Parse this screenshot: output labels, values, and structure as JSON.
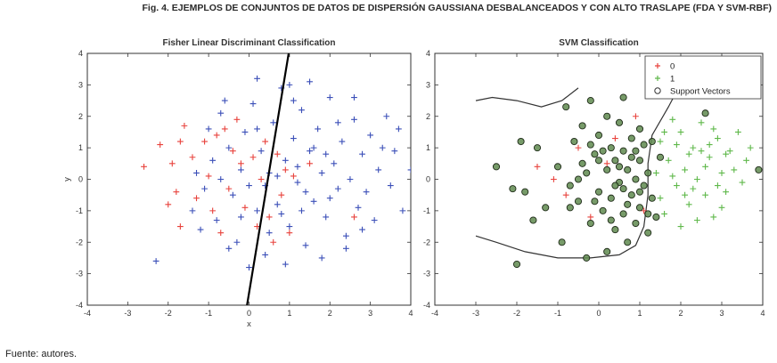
{
  "figure": {
    "caption": "Fig. 4. EJEMPLOS DE CONJUNTOS DE DATOS DE DISPERSIÓN GAUSSIANA DESBALANCEADOS Y CON ALTO TRASLAPE (FDA Y SVM-RBF)",
    "source": "Fuente: autores."
  },
  "colors": {
    "class0": "#e8423c",
    "class1_fda": "#3b4fb8",
    "class1_svm": "#5fb84a",
    "sv_fill": "#5f8a4f",
    "sv_stroke": "#1e2a18",
    "line": "#000000",
    "boundary": "#333333"
  },
  "chart_data": [
    {
      "type": "scatter",
      "title": "Fisher Linear Discriminant Classification",
      "xlabel": "x",
      "ylabel": "y",
      "xlim": [
        -4,
        4
      ],
      "ylim": [
        -4,
        4
      ],
      "xticks": [
        "-4",
        "-3",
        "-2",
        "-1",
        "0",
        "1",
        "2",
        "3",
        "4"
      ],
      "yticks": [
        "-4",
        "-3",
        "-2",
        "-1",
        "0",
        "1",
        "2",
        "3",
        "4"
      ],
      "grid": false,
      "series": [
        {
          "class": "0",
          "marker": "+",
          "color": "#e8423c",
          "points": [
            [
              -1.6,
              1.7
            ],
            [
              -2.6,
              0.4
            ],
            [
              -2.2,
              1.1
            ],
            [
              -1.9,
              0.5
            ],
            [
              -1.8,
              -0.4
            ],
            [
              -2.0,
              -0.8
            ],
            [
              -1.7,
              -1.5
            ],
            [
              -1.4,
              0.7
            ],
            [
              -1.1,
              1.2
            ],
            [
              -0.8,
              1.4
            ],
            [
              -0.6,
              1.6
            ],
            [
              -1.3,
              -0.6
            ],
            [
              -0.9,
              -1.0
            ],
            [
              -0.4,
              0.9
            ],
            [
              -0.2,
              0.5
            ],
            [
              0.1,
              0.7
            ],
            [
              0.4,
              1.2
            ],
            [
              0.7,
              0.8
            ],
            [
              0.9,
              0.3
            ],
            [
              -0.5,
              -0.3
            ],
            [
              -0.1,
              -0.9
            ],
            [
              0.2,
              -1.5
            ],
            [
              0.5,
              -1.2
            ],
            [
              0.8,
              -0.5
            ],
            [
              1.1,
              0.1
            ],
            [
              1.5,
              0.5
            ],
            [
              -1.0,
              0.1
            ],
            [
              -0.3,
              1.9
            ],
            [
              0.3,
              0.0
            ],
            [
              0.6,
              -2.0
            ],
            [
              1.0,
              -1.7
            ],
            [
              2.6,
              -1.2
            ],
            [
              -1.7,
              1.2
            ],
            [
              -0.7,
              -1.7
            ]
          ]
        },
        {
          "class": "1",
          "marker": "+",
          "color": "#3b4fb8",
          "points": [
            [
              -2.3,
              -2.6
            ],
            [
              -1.3,
              0.2
            ],
            [
              -1.1,
              -0.3
            ],
            [
              -0.9,
              0.6
            ],
            [
              -0.8,
              -1.3
            ],
            [
              -0.7,
              2.1
            ],
            [
              -0.5,
              1.0
            ],
            [
              -0.4,
              -0.5
            ],
            [
              -0.3,
              -2.0
            ],
            [
              -0.2,
              0.3
            ],
            [
              -0.1,
              1.5
            ],
            [
              0.0,
              -0.2
            ],
            [
              0.1,
              2.4
            ],
            [
              0.2,
              -1.0
            ],
            [
              0.3,
              0.9
            ],
            [
              0.4,
              -2.4
            ],
            [
              0.5,
              0.2
            ],
            [
              0.6,
              1.8
            ],
            [
              0.7,
              -0.8
            ],
            [
              0.8,
              2.9
            ],
            [
              0.9,
              0.6
            ],
            [
              1.0,
              -1.5
            ],
            [
              1.1,
              1.3
            ],
            [
              1.2,
              -0.1
            ],
            [
              1.3,
              2.2
            ],
            [
              1.4,
              -2.1
            ],
            [
              1.5,
              0.9
            ],
            [
              1.6,
              -0.7
            ],
            [
              1.7,
              1.6
            ],
            [
              1.8,
              0.2
            ],
            [
              1.9,
              -1.2
            ],
            [
              2.0,
              2.6
            ],
            [
              2.1,
              0.5
            ],
            [
              2.2,
              -0.3
            ],
            [
              2.3,
              1.2
            ],
            [
              2.4,
              -1.8
            ],
            [
              2.5,
              0.0
            ],
            [
              2.6,
              1.9
            ],
            [
              2.7,
              -0.9
            ],
            [
              2.8,
              0.8
            ],
            [
              2.9,
              -0.4
            ],
            [
              3.0,
              1.4
            ],
            [
              3.1,
              -1.3
            ],
            [
              3.2,
              0.3
            ],
            [
              3.4,
              2.0
            ],
            [
              3.5,
              -0.2
            ],
            [
              3.6,
              0.9
            ],
            [
              3.8,
              -1.0
            ],
            [
              4.0,
              0.3
            ],
            [
              1.0,
              3.0
            ],
            [
              1.5,
              3.1
            ],
            [
              0.2,
              3.2
            ],
            [
              -0.6,
              2.5
            ],
            [
              1.8,
              -2.5
            ],
            [
              2.4,
              -2.2
            ],
            [
              0.9,
              -2.7
            ],
            [
              0.0,
              -2.8
            ],
            [
              -0.5,
              -2.2
            ],
            [
              1.2,
              0.4
            ],
            [
              0.4,
              -0.2
            ],
            [
              1.6,
              1.0
            ],
            [
              2.0,
              -0.6
            ],
            [
              0.7,
              0.1
            ],
            [
              -0.2,
              -1.2
            ],
            [
              0.2,
              1.6
            ],
            [
              1.3,
              -1.0
            ],
            [
              1.9,
              0.8
            ],
            [
              2.2,
              1.8
            ],
            [
              0.5,
              -1.7
            ],
            [
              1.1,
              2.5
            ],
            [
              2.8,
              -1.6
            ],
            [
              3.3,
              1.0
            ],
            [
              -1.4,
              -1.0
            ],
            [
              -1.0,
              1.6
            ],
            [
              -1.2,
              -1.6
            ],
            [
              -0.7,
              0.0
            ],
            [
              3.7,
              1.6
            ],
            [
              2.6,
              2.6
            ],
            [
              1.4,
              -0.4
            ],
            [
              0.8,
              -1.1
            ]
          ]
        }
      ],
      "line": {
        "from": [
          -0.05,
          -4.0
        ],
        "to": [
          0.98,
          4.0
        ]
      }
    },
    {
      "type": "scatter",
      "title": "SVM Classification",
      "xlabel": "",
      "ylabel": "",
      "xlim": [
        -4,
        4
      ],
      "ylim": [
        -4,
        4
      ],
      "xticks": [
        "-4",
        "-3",
        "-2",
        "-1",
        "0",
        "1",
        "2",
        "3",
        "4"
      ],
      "yticks": [
        "-4",
        "-3",
        "-2",
        "-1",
        "0",
        "1",
        "2",
        "3",
        "4"
      ],
      "grid": false,
      "legend": {
        "position": "top-right",
        "entries": [
          "0",
          "1",
          "Support Vectors"
        ]
      },
      "series": [
        {
          "class": "0",
          "marker": "+",
          "color": "#e8423c",
          "points": [
            [
              -1.1,
              0.0
            ],
            [
              -0.8,
              -0.5
            ],
            [
              -1.5,
              0.4
            ],
            [
              -0.5,
              1.0
            ],
            [
              -0.2,
              -1.2
            ],
            [
              0.4,
              1.3
            ],
            [
              0.9,
              2.0
            ],
            [
              1.1,
              -1.0
            ],
            [
              0.2,
              0.5
            ]
          ]
        },
        {
          "class": "1",
          "marker": "+",
          "color": "#5fb84a",
          "points": [
            [
              1.5,
              1.2
            ],
            [
              1.7,
              0.6
            ],
            [
              1.9,
              -0.2
            ],
            [
              2.0,
              1.5
            ],
            [
              2.1,
              0.3
            ],
            [
              2.2,
              -0.8
            ],
            [
              2.3,
              1.0
            ],
            [
              2.4,
              0.0
            ],
            [
              2.5,
              1.8
            ],
            [
              2.6,
              -0.5
            ],
            [
              2.7,
              0.7
            ],
            [
              2.8,
              -1.2
            ],
            [
              2.9,
              1.3
            ],
            [
              3.0,
              0.2
            ],
            [
              3.1,
              -0.4
            ],
            [
              3.2,
              0.9
            ],
            [
              3.4,
              1.5
            ],
            [
              3.5,
              -0.1
            ],
            [
              3.6,
              0.6
            ],
            [
              1.6,
              -1.1
            ],
            [
              1.8,
              1.9
            ],
            [
              2.0,
              -1.5
            ],
            [
              2.2,
              0.8
            ],
            [
              2.4,
              -1.3
            ],
            [
              2.6,
              0.4
            ],
            [
              2.8,
              1.6
            ],
            [
              3.0,
              -0.9
            ],
            [
              1.4,
              0.2
            ],
            [
              1.6,
              1.5
            ],
            [
              2.3,
              -0.3
            ],
            [
              2.7,
              1.1
            ],
            [
              1.8,
              0.1
            ],
            [
              2.1,
              -0.5
            ],
            [
              3.3,
              0.3
            ],
            [
              2.5,
              0.9
            ],
            [
              3.7,
              1.0
            ],
            [
              1.5,
              -0.6
            ],
            [
              1.9,
              1.1
            ],
            [
              2.9,
              -0.2
            ],
            [
              3.1,
              0.8
            ]
          ]
        },
        {
          "class": "support_vectors",
          "marker": "o",
          "color": "#5f8a4f",
          "points": [
            [
              -2.5,
              0.4
            ],
            [
              -2.1,
              -0.3
            ],
            [
              -1.9,
              1.2
            ],
            [
              -1.8,
              -0.4
            ],
            [
              -1.6,
              -1.3
            ],
            [
              -2.0,
              -2.7
            ],
            [
              -1.3,
              -0.9
            ],
            [
              -1.0,
              0.4
            ],
            [
              -0.7,
              -0.2
            ],
            [
              -0.6,
              1.2
            ],
            [
              -0.5,
              -0.7
            ],
            [
              -0.4,
              1.7
            ],
            [
              -0.3,
              0.2
            ],
            [
              -0.2,
              -1.4
            ],
            [
              -0.1,
              0.8
            ],
            [
              0.0,
              -0.4
            ],
            [
              0.0,
              1.4
            ],
            [
              0.1,
              -1.0
            ],
            [
              0.2,
              0.3
            ],
            [
              0.2,
              -2.3
            ],
            [
              0.3,
              1.0
            ],
            [
              0.3,
              -0.6
            ],
            [
              0.4,
              0.6
            ],
            [
              0.4,
              -1.6
            ],
            [
              0.5,
              1.8
            ],
            [
              0.5,
              -0.1
            ],
            [
              0.6,
              0.9
            ],
            [
              0.6,
              -1.1
            ],
            [
              0.7,
              0.3
            ],
            [
              0.7,
              -2.0
            ],
            [
              0.8,
              1.3
            ],
            [
              0.8,
              -0.5
            ],
            [
              0.9,
              0.0
            ],
            [
              0.9,
              -1.4
            ],
            [
              1.0,
              0.6
            ],
            [
              1.0,
              -0.9
            ],
            [
              1.1,
              1.1
            ],
            [
              1.1,
              -0.2
            ],
            [
              1.2,
              0.2
            ],
            [
              1.2,
              -1.7
            ],
            [
              1.3,
              -0.6
            ],
            [
              1.3,
              1.2
            ],
            [
              1.4,
              -1.2
            ],
            [
              1.5,
              0.7
            ],
            [
              -0.4,
              0.5
            ],
            [
              -0.1,
              -0.7
            ],
            [
              0.1,
              0.9
            ],
            [
              0.3,
              -1.3
            ],
            [
              0.5,
              0.4
            ],
            [
              0.6,
              -0.3
            ],
            [
              0.8,
              0.7
            ],
            [
              1.0,
              -0.4
            ],
            [
              -0.8,
              2.3
            ],
            [
              0.2,
              2.0
            ],
            [
              0.6,
              2.6
            ],
            [
              -0.3,
              -2.5
            ],
            [
              -0.7,
              -0.9
            ],
            [
              -1.5,
              1.0
            ],
            [
              -0.9,
              -2.0
            ],
            [
              2.6,
              2.1
            ],
            [
              3.9,
              0.3
            ],
            [
              -0.2,
              2.5
            ],
            [
              1.0,
              1.6
            ],
            [
              0.4,
              -0.2
            ],
            [
              -0.5,
              0.0
            ],
            [
              0.7,
              -0.8
            ],
            [
              -0.2,
              1.1
            ],
            [
              1.2,
              -1.1
            ],
            [
              0.0,
              0.6
            ],
            [
              0.9,
              0.9
            ]
          ]
        }
      ],
      "boundaries": [
        [
          [
            -3.0,
            2.5
          ],
          [
            -2.6,
            2.6
          ],
          [
            -2.0,
            2.5
          ],
          [
            -1.4,
            2.3
          ],
          [
            -0.9,
            2.5
          ],
          [
            -0.5,
            2.9
          ]
        ],
        [
          [
            -3.0,
            -1.8
          ],
          [
            -2.5,
            -2.0
          ],
          [
            -1.8,
            -2.3
          ],
          [
            -1.0,
            -2.5
          ],
          [
            -0.2,
            -2.5
          ],
          [
            0.5,
            -2.4
          ],
          [
            0.9,
            -2.1
          ],
          [
            1.1,
            -1.5
          ],
          [
            1.2,
            -0.5
          ],
          [
            1.2,
            0.5
          ],
          [
            1.3,
            1.4
          ],
          [
            1.7,
            2.3
          ],
          [
            1.9,
            2.8
          ]
        ]
      ]
    }
  ]
}
